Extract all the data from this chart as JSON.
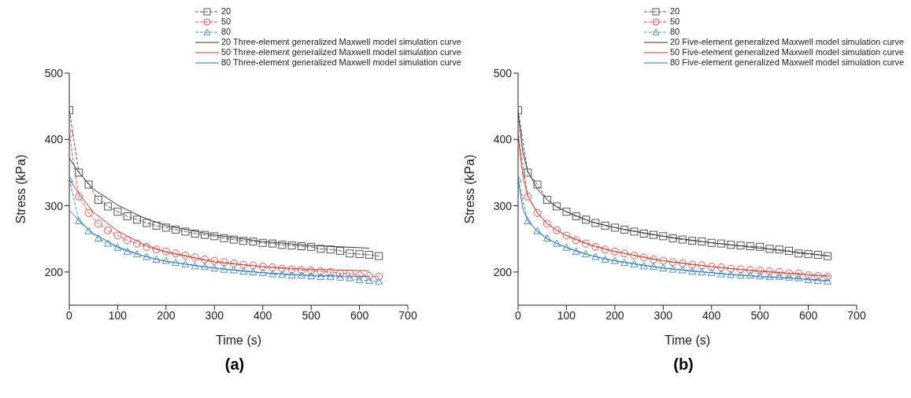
{
  "chart_data": [
    {
      "type": "line",
      "title": "(a)",
      "xlabel": "Time (s)",
      "ylabel": "Stress (kPa)",
      "xlim": [
        0,
        700
      ],
      "xticks": [
        0,
        100,
        200,
        300,
        400,
        500,
        600,
        700
      ],
      "ylim": [
        150,
        500
      ],
      "yticks": [
        200,
        300,
        400,
        500
      ],
      "grid": false,
      "legend": "top",
      "series": [
        {
          "name": "20",
          "color": "#555555",
          "marker": "square",
          "line_style": "dashed",
          "x": [
            0,
            20,
            40,
            60,
            80,
            100,
            120,
            140,
            160,
            180,
            200,
            220,
            240,
            260,
            280,
            300,
            320,
            340,
            360,
            380,
            400,
            420,
            440,
            460,
            480,
            500,
            520,
            540,
            560,
            580,
            600,
            620,
            640
          ],
          "values": [
            444,
            350,
            332,
            309,
            299,
            291,
            284,
            279,
            274,
            270,
            267,
            264,
            261,
            258,
            256,
            254,
            251,
            249,
            247,
            246,
            244,
            243,
            241,
            240,
            239,
            238,
            235,
            234,
            232,
            228,
            227,
            226,
            224
          ]
        },
        {
          "name": "50",
          "color": "#d9534f",
          "marker": "circle",
          "line_style": "dashed",
          "x": [
            0,
            20,
            40,
            60,
            80,
            100,
            120,
            140,
            160,
            180,
            200,
            220,
            240,
            260,
            280,
            300,
            320,
            340,
            360,
            380,
            400,
            420,
            440,
            460,
            480,
            500,
            520,
            540,
            560,
            580,
            600,
            620,
            640
          ],
          "values": [
            408,
            314,
            289,
            273,
            263,
            255,
            248,
            243,
            238,
            234,
            231,
            228,
            225,
            222,
            219,
            217,
            215,
            213,
            211,
            210,
            208,
            207,
            205,
            204,
            203,
            202,
            201,
            200,
            198,
            198,
            195,
            194,
            193
          ]
        },
        {
          "name": "80",
          "color": "#4a90c8",
          "marker": "triangle",
          "line_style": "dashed",
          "x": [
            0,
            20,
            40,
            60,
            80,
            100,
            120,
            140,
            160,
            180,
            200,
            220,
            240,
            260,
            280,
            300,
            320,
            340,
            360,
            380,
            400,
            420,
            440,
            460,
            480,
            500,
            520,
            540,
            560,
            580,
            600,
            620,
            640
          ],
          "values": [
            340,
            277,
            262,
            251,
            243,
            237,
            231,
            227,
            223,
            219,
            217,
            214,
            212,
            209,
            208,
            206,
            204,
            203,
            201,
            200,
            199,
            197,
            196,
            195,
            195,
            194,
            193,
            193,
            192,
            191,
            188,
            187,
            186
          ]
        },
        {
          "name": "20 Three-element generalized Maxwell model simulation curve",
          "color": "#333333",
          "marker": "none",
          "line_style": "solid",
          "x": [
            0,
            20,
            50,
            100,
            150,
            200,
            300,
            400,
            500,
            620
          ],
          "values": [
            372,
            350,
            325,
            301,
            283,
            270,
            256,
            246,
            240,
            236
          ]
        },
        {
          "name": "50 Three-element generalized Maxwell model simulation curve",
          "color": "#c0392b",
          "marker": "none",
          "line_style": "solid",
          "x": [
            0,
            20,
            50,
            100,
            150,
            200,
            300,
            400,
            500,
            620
          ],
          "values": [
            340,
            318,
            290,
            262,
            243,
            230,
            215,
            208,
            204,
            202
          ]
        },
        {
          "name": "80 Three-element generalized Maxwell model simulation curve",
          "color": "#2e6fae",
          "marker": "none",
          "line_style": "solid",
          "x": [
            0,
            20,
            50,
            100,
            150,
            200,
            300,
            400,
            500,
            620
          ],
          "values": [
            293,
            278,
            258,
            238,
            225,
            216,
            206,
            199,
            195,
            193
          ]
        }
      ]
    },
    {
      "type": "line",
      "title": "(b)",
      "xlabel": "Time (s)",
      "ylabel": "Stress (kPa)",
      "xlim": [
        0,
        700
      ],
      "xticks": [
        0,
        100,
        200,
        300,
        400,
        500,
        600,
        700
      ],
      "ylim": [
        150,
        500
      ],
      "yticks": [
        200,
        300,
        400,
        500
      ],
      "grid": false,
      "legend": "top",
      "series": [
        {
          "name": "20",
          "color": "#555555",
          "marker": "square",
          "line_style": "dashed",
          "x": [
            0,
            20,
            40,
            60,
            80,
            100,
            120,
            140,
            160,
            180,
            200,
            220,
            240,
            260,
            280,
            300,
            320,
            340,
            360,
            380,
            400,
            420,
            440,
            460,
            480,
            500,
            520,
            540,
            560,
            580,
            600,
            620,
            640
          ],
          "values": [
            444,
            350,
            332,
            309,
            299,
            291,
            284,
            279,
            274,
            270,
            267,
            264,
            261,
            258,
            256,
            254,
            251,
            249,
            247,
            246,
            244,
            243,
            241,
            240,
            239,
            238,
            235,
            234,
            232,
            228,
            227,
            226,
            224
          ]
        },
        {
          "name": "50",
          "color": "#d9534f",
          "marker": "circle",
          "line_style": "dashed",
          "x": [
            0,
            20,
            40,
            60,
            80,
            100,
            120,
            140,
            160,
            180,
            200,
            220,
            240,
            260,
            280,
            300,
            320,
            340,
            360,
            380,
            400,
            420,
            440,
            460,
            480,
            500,
            520,
            540,
            560,
            580,
            600,
            620,
            640
          ],
          "values": [
            408,
            314,
            289,
            273,
            263,
            255,
            248,
            243,
            238,
            234,
            231,
            228,
            225,
            222,
            219,
            217,
            215,
            213,
            211,
            210,
            208,
            207,
            205,
            204,
            203,
            202,
            201,
            200,
            198,
            198,
            195,
            194,
            193
          ]
        },
        {
          "name": "80",
          "color": "#4a90c8",
          "marker": "triangle",
          "line_style": "dashed",
          "x": [
            0,
            20,
            40,
            60,
            80,
            100,
            120,
            140,
            160,
            180,
            200,
            220,
            240,
            260,
            280,
            300,
            320,
            340,
            360,
            380,
            400,
            420,
            440,
            460,
            480,
            500,
            520,
            540,
            560,
            580,
            600,
            620,
            640
          ],
          "values": [
            340,
            277,
            262,
            251,
            243,
            237,
            231,
            227,
            223,
            219,
            217,
            214,
            212,
            209,
            208,
            206,
            204,
            203,
            201,
            200,
            199,
            197,
            196,
            195,
            195,
            194,
            193,
            193,
            192,
            191,
            188,
            187,
            186
          ]
        },
        {
          "name": "20 Five-element generalized Maxwell model simulation curve",
          "color": "#333333",
          "marker": "none",
          "line_style": "solid",
          "x": [
            0,
            10,
            20,
            40,
            60,
            80,
            100,
            150,
            200,
            300,
            400,
            500,
            600,
            645
          ],
          "values": [
            440,
            380,
            352,
            325,
            309,
            298,
            291,
            276,
            267,
            254,
            244,
            236,
            228,
            224
          ]
        },
        {
          "name": "50 Five-element generalized Maxwell model simulation curve",
          "color": "#c0392b",
          "marker": "none",
          "line_style": "solid",
          "x": [
            0,
            10,
            20,
            40,
            60,
            80,
            100,
            150,
            200,
            300,
            400,
            500,
            600,
            645
          ],
          "values": [
            405,
            345,
            315,
            289,
            273,
            263,
            255,
            241,
            231,
            217,
            208,
            201,
            196,
            194
          ]
        },
        {
          "name": "80 Five-element generalized Maxwell model simulation curve",
          "color": "#2e6fae",
          "marker": "none",
          "line_style": "solid",
          "x": [
            0,
            10,
            20,
            40,
            60,
            80,
            100,
            150,
            200,
            300,
            400,
            500,
            600,
            645
          ],
          "values": [
            340,
            295,
            278,
            261,
            250,
            243,
            237,
            225,
            217,
            206,
            199,
            193,
            189,
            187
          ]
        }
      ]
    }
  ]
}
